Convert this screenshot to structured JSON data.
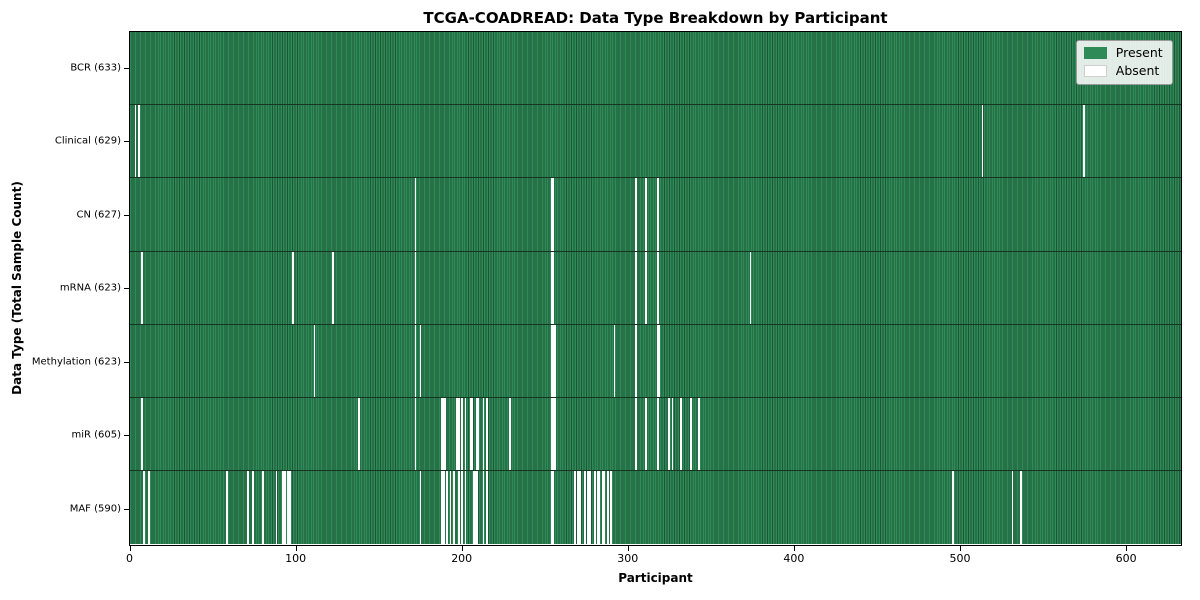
{
  "chart_data": {
    "type": "heatmap",
    "title": "TCGA-COADREAD: Data Type Breakdown by Participant",
    "xlabel": "Participant",
    "ylabel": "Data Type (Total Sample Count)",
    "x_ticks": [
      0,
      100,
      200,
      300,
      400,
      500,
      600
    ],
    "xlim": [
      -0.5,
      633.5
    ],
    "n_participants": 633,
    "grid": false,
    "colors": {
      "present": "#2e8b57",
      "present_edge": "#1d5737",
      "absent": "#ffffff",
      "row_divider": "#16341f"
    },
    "legend": {
      "position": "upper right",
      "entries": [
        {
          "label": "Present",
          "color": "#2e8b57"
        },
        {
          "label": "Absent",
          "color": "#ffffff"
        }
      ]
    },
    "rows": [
      {
        "label": "BCR (633)",
        "data_type": "BCR",
        "present_count": 633,
        "absent": []
      },
      {
        "label": "Clinical (629)",
        "data_type": "Clinical",
        "present_count": 629,
        "absent": [
          3,
          5,
          514,
          575
        ]
      },
      {
        "label": "CN (627)",
        "data_type": "CN",
        "present_count": 627,
        "absent": [
          172,
          254,
          255,
          305,
          311,
          318
        ]
      },
      {
        "label": "mRNA (623)",
        "data_type": "mRNA",
        "present_count": 623,
        "absent": [
          7,
          98,
          122,
          172,
          254,
          255,
          305,
          311,
          318,
          374
        ]
      },
      {
        "label": "Methylation (623)",
        "data_type": "Methylation",
        "present_count": 623,
        "absent": [
          111,
          172,
          175,
          254,
          255,
          256,
          292,
          305,
          318,
          319
        ]
      },
      {
        "label": "miR (605)",
        "data_type": "miR",
        "present_count": 605,
        "absent": [
          7,
          138,
          172,
          188,
          189,
          190,
          197,
          198,
          200,
          202,
          205,
          206,
          209,
          210,
          213,
          215,
          229,
          254,
          255,
          256,
          305,
          311,
          318,
          325,
          327,
          332,
          338,
          343
        ]
      },
      {
        "label": "MAF (590)",
        "data_type": "MAF",
        "present_count": 590,
        "absent": [
          8,
          11,
          58,
          71,
          74,
          80,
          88,
          92,
          93,
          95,
          96,
          175,
          188,
          189,
          191,
          193,
          195,
          198,
          200,
          202,
          207,
          208,
          209,
          213,
          215,
          254,
          255,
          268,
          270,
          271,
          274,
          276,
          277,
          280,
          282,
          283,
          285,
          286,
          288,
          290,
          496,
          532,
          537
        ]
      }
    ]
  }
}
